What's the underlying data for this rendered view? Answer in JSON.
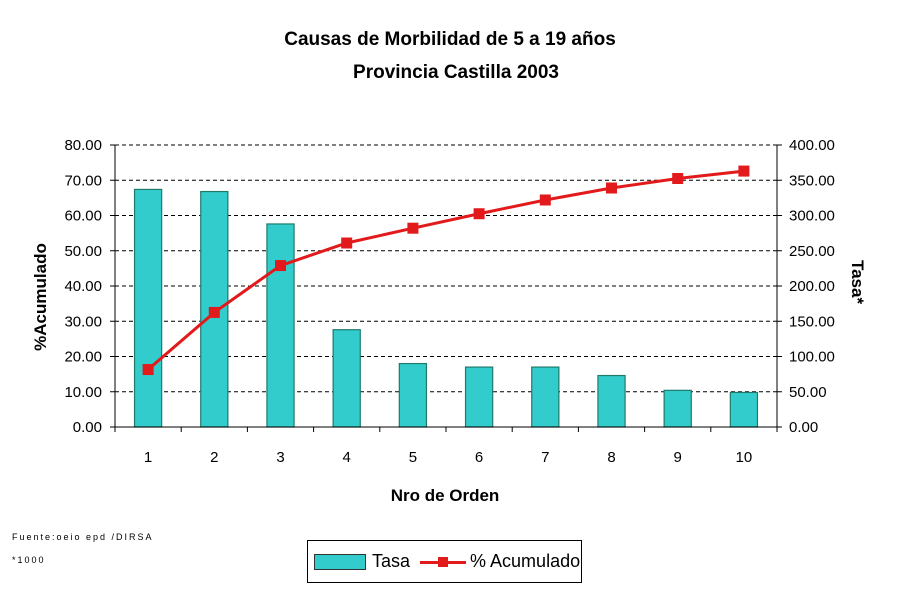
{
  "chart_data": {
    "type": "bar",
    "title": "Causas de Morbilidad de 5 a 19 años",
    "subtitle": "Provincia Castilla 2003",
    "xlabel": "Nro de Orden",
    "ylabel_left": "%Acumulado",
    "ylabel_right": "Tasa*",
    "categories": [
      "1",
      "2",
      "3",
      "4",
      "5",
      "6",
      "7",
      "8",
      "9",
      "10"
    ],
    "y_left_ticks": [
      "0.00",
      "10.00",
      "20.00",
      "30.00",
      "40.00",
      "50.00",
      "60.00",
      "70.00",
      "80.00"
    ],
    "y_right_ticks": [
      "0.00",
      "50.00",
      "100.00",
      "150.00",
      "200.00",
      "250.00",
      "300.00",
      "350.00",
      "400.00"
    ],
    "ylim_left": [
      0,
      80
    ],
    "ylim_right": [
      0,
      400
    ],
    "grid": true,
    "legend_position": "bottom",
    "series": [
      {
        "name": "Tasa",
        "kind": "bar",
        "axis": "right",
        "color": "#33cccc",
        "values": [
          337,
          334,
          288,
          138,
          90,
          85,
          85,
          73,
          52,
          49
        ]
      },
      {
        "name": "% Acumulado",
        "kind": "line",
        "axis": "left",
        "color": "#e31a1c",
        "values": [
          16.3,
          32.5,
          45.8,
          52.2,
          56.4,
          60.5,
          64.4,
          67.8,
          70.5,
          72.6
        ]
      }
    ]
  },
  "footnotes": {
    "source": "Fuente:oeio epd /DIRSA",
    "scale": "*1000"
  },
  "legend": {
    "bar_label": "Tasa",
    "line_label": "% Acumulado"
  }
}
